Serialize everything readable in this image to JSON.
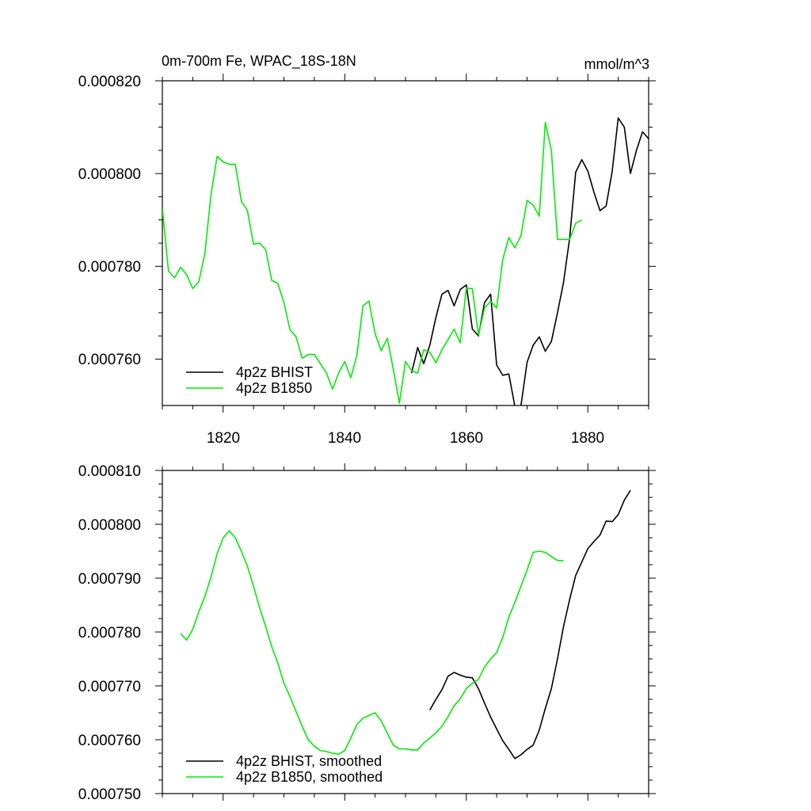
{
  "colors": {
    "bhist": "#000000",
    "b1850": "#00ee00",
    "axis": "#000000",
    "background": "#ffffff"
  },
  "chart_data": [
    {
      "type": "line",
      "title": "0m-700m Fe, WPAC_18S-18N",
      "units": "mmol/m^3",
      "xlim": [
        1810,
        1890
      ],
      "ylim": [
        0.00075,
        0.00082
      ],
      "x_ticks": [
        1820,
        1840,
        1860,
        1880
      ],
      "x_tick_labels": [
        "1820",
        "1840",
        "1860",
        "1880"
      ],
      "y_ticks": [
        0.00076,
        0.00078,
        0.0008,
        0.00082
      ],
      "y_tick_labels": [
        "0.000760",
        "0.000780",
        "0.000800",
        "0.000820"
      ],
      "legend_position": "bottom-left",
      "series": [
        {
          "name": "4p2z BHIST",
          "color": "#000000",
          "x": [
            1851,
            1852,
            1853,
            1854,
            1855,
            1856,
            1857,
            1858,
            1859,
            1860,
            1861,
            1862,
            1863,
            1864,
            1865,
            1866,
            1867,
            1868,
            1869,
            1870,
            1871,
            1872,
            1873,
            1874,
            1875,
            1876,
            1877,
            1878,
            1879,
            1880,
            1881,
            1882,
            1883,
            1884,
            1885,
            1886,
            1887,
            1888,
            1889,
            1890
          ],
          "values": [
            0.000757,
            0.0007625,
            0.000759,
            0.000763,
            0.000769,
            0.000774,
            0.0007748,
            0.0007715,
            0.000775,
            0.000776,
            0.0007665,
            0.000765,
            0.0007722,
            0.000774,
            0.0007587,
            0.0007565,
            0.0007568,
            0.0007498,
            0.00075,
            0.0007593,
            0.000763,
            0.0007648,
            0.0007617,
            0.0007638,
            0.00077,
            0.0007765,
            0.000786,
            0.0008003,
            0.000803,
            0.0008005,
            0.000796,
            0.000792,
            0.000793,
            0.0008005,
            0.000812,
            0.00081,
            0.0008,
            0.000805,
            0.000809,
            0.0008075
          ]
        },
        {
          "name": "4p2z B1850",
          "color": "#00ee00",
          "x": [
            1810,
            1811,
            1812,
            1813,
            1814,
            1815,
            1816,
            1817,
            1818,
            1819,
            1820,
            1821,
            1822,
            1823,
            1824,
            1825,
            1826,
            1827,
            1828,
            1829,
            1830,
            1831,
            1832,
            1833,
            1834,
            1835,
            1836,
            1837,
            1838,
            1839,
            1840,
            1841,
            1842,
            1843,
            1844,
            1845,
            1846,
            1847,
            1848,
            1849,
            1850,
            1851,
            1852,
            1853,
            1854,
            1855,
            1856,
            1857,
            1858,
            1859,
            1860,
            1861,
            1862,
            1863,
            1864,
            1865,
            1866,
            1867,
            1868,
            1869,
            1870,
            1871,
            1872,
            1873,
            1874,
            1875,
            1876,
            1877,
            1878,
            1879
          ],
          "values": [
            0.0007925,
            0.000779,
            0.0007775,
            0.0007798,
            0.0007782,
            0.0007752,
            0.0007767,
            0.0007828,
            0.0007954,
            0.0008037,
            0.0008025,
            0.000802,
            0.000802,
            0.000794,
            0.000792,
            0.0007848,
            0.000785,
            0.0007836,
            0.000777,
            0.0007763,
            0.0007722,
            0.0007663,
            0.0007648,
            0.0007602,
            0.000761,
            0.000761,
            0.000759,
            0.000757,
            0.0007535,
            0.000757,
            0.0007595,
            0.000756,
            0.0007608,
            0.0007715,
            0.0007725,
            0.0007655,
            0.0007618,
            0.0007645,
            0.0007578,
            0.0007505,
            0.0007595,
            0.0007575,
            0.000757,
            0.000762,
            0.0007615,
            0.0007592,
            0.000762,
            0.0007642,
            0.0007665,
            0.0007635,
            0.0007753,
            0.0007752,
            0.0007652,
            0.000771,
            0.0007725,
            0.000771,
            0.0007815,
            0.0007862,
            0.000784,
            0.0007866,
            0.0007942,
            0.0007932,
            0.0007908,
            0.000811,
            0.000805,
            0.0007858,
            0.0007858,
            0.0007858,
            0.0007893,
            0.00079
          ]
        }
      ]
    },
    {
      "type": "line",
      "xlim": [
        1810,
        1890
      ],
      "ylim": [
        0.00075,
        0.00081
      ],
      "x_ticks": [
        1820,
        1840,
        1860,
        1880
      ],
      "y_ticks": [
        0.00075,
        0.00076,
        0.00077,
        0.00078,
        0.00079,
        0.0008,
        0.00081
      ],
      "y_tick_labels": [
        "0.000750",
        "0.000760",
        "0.000770",
        "0.000780",
        "0.000790",
        "0.000800",
        "0.000810"
      ],
      "legend_position": "bottom-left",
      "series": [
        {
          "name": "4p2z BHIST, smoothed",
          "color": "#000000",
          "x": [
            1854,
            1855,
            1856,
            1857,
            1858,
            1859,
            1860,
            1861,
            1862,
            1863,
            1864,
            1865,
            1866,
            1867,
            1868,
            1869,
            1870,
            1871,
            1872,
            1873,
            1874,
            1875,
            1876,
            1877,
            1878,
            1879,
            1880,
            1881,
            1882,
            1883,
            1884,
            1885,
            1886,
            1887
          ],
          "values": [
            0.0007655,
            0.0007675,
            0.0007693,
            0.0007718,
            0.0007725,
            0.000772,
            0.0007716,
            0.0007715,
            0.0007695,
            0.0007668,
            0.0007642,
            0.000762,
            0.0007598,
            0.0007582,
            0.0007565,
            0.0007572,
            0.0007582,
            0.000759,
            0.0007618,
            0.0007658,
            0.0007695,
            0.000775,
            0.000781,
            0.000786,
            0.0007905,
            0.000793,
            0.0007955,
            0.0007968,
            0.000798,
            0.0008006,
            0.0008005,
            0.0008018,
            0.0008045,
            0.0008063
          ]
        },
        {
          "name": "4p2z B1850, smoothed",
          "color": "#00ee00",
          "x": [
            1813,
            1814,
            1815,
            1816,
            1817,
            1818,
            1819,
            1820,
            1821,
            1822,
            1823,
            1824,
            1825,
            1826,
            1827,
            1828,
            1829,
            1830,
            1831,
            1832,
            1833,
            1834,
            1835,
            1836,
            1837,
            1838,
            1839,
            1840,
            1841,
            1842,
            1843,
            1844,
            1845,
            1846,
            1847,
            1848,
            1849,
            1850,
            1851,
            1852,
            1853,
            1854,
            1855,
            1856,
            1857,
            1858,
            1859,
            1860,
            1861,
            1862,
            1863,
            1864,
            1865,
            1866,
            1867,
            1868,
            1869,
            1870,
            1871,
            1872,
            1873,
            1874,
            1875,
            1876
          ],
          "values": [
            0.0007797,
            0.0007785,
            0.0007805,
            0.0007838,
            0.0007866,
            0.0007902,
            0.0007945,
            0.0007975,
            0.0007988,
            0.0007975,
            0.000795,
            0.0007922,
            0.0007885,
            0.0007845,
            0.000781,
            0.0007773,
            0.0007742,
            0.0007705,
            0.000768,
            0.0007652,
            0.0007625,
            0.00076,
            0.0007588,
            0.000758,
            0.0007578,
            0.0007575,
            0.0007573,
            0.000758,
            0.0007603,
            0.0007628,
            0.000764,
            0.0007645,
            0.000765,
            0.0007635,
            0.0007612,
            0.000759,
            0.0007583,
            0.0007583,
            0.0007581,
            0.0007581,
            0.0007594,
            0.0007603,
            0.0007613,
            0.0007625,
            0.0007643,
            0.0007663,
            0.0007676,
            0.0007695,
            0.0007705,
            0.0007712,
            0.0007735,
            0.000775,
            0.0007762,
            0.000779,
            0.0007828,
            0.0007855,
            0.0007885,
            0.0007915,
            0.0007948,
            0.000795,
            0.0007948,
            0.000794,
            0.0007933,
            0.0007932
          ]
        }
      ]
    }
  ]
}
